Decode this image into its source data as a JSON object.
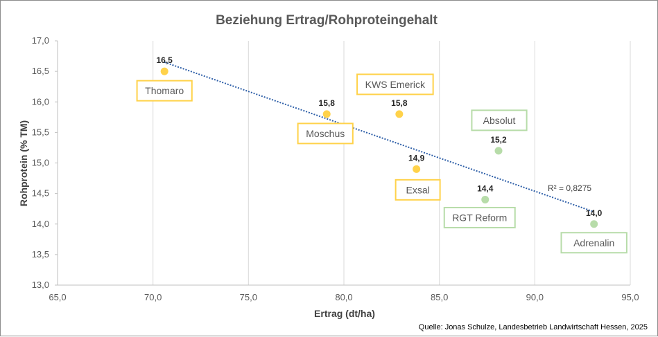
{
  "chart_data": {
    "type": "scatter",
    "title": "Beziehung Ertrag/Rohproteingehalt",
    "xlabel": "Ertrag (dt/ha)",
    "ylabel": "Rohprotein (% TM)",
    "xlim": [
      65,
      95
    ],
    "ylim": [
      13,
      17
    ],
    "x_ticks": [
      65,
      70,
      75,
      80,
      85,
      90,
      95
    ],
    "x_tick_labels": [
      "65,0",
      "70,0",
      "75,0",
      "80,0",
      "85,0",
      "90,0",
      "95,0"
    ],
    "y_ticks": [
      13,
      13.5,
      14,
      14.5,
      15,
      15.5,
      16,
      16.5,
      17
    ],
    "y_tick_labels": [
      "13,0",
      "13,5",
      "14,0",
      "14,5",
      "15,0",
      "15,5",
      "16,0",
      "16,5",
      "17,0"
    ],
    "grid": "vertical",
    "points": [
      {
        "name": "Thomaro",
        "x": 70.6,
        "y": 16.5,
        "label": "16,5",
        "group": "yellow"
      },
      {
        "name": "Moschus",
        "x": 79.1,
        "y": 15.8,
        "label": "15,8",
        "group": "yellow"
      },
      {
        "name": "KWS Emerick",
        "x": 82.9,
        "y": 15.8,
        "label": "15,8",
        "group": "yellow"
      },
      {
        "name": "Exsal",
        "x": 83.8,
        "y": 14.9,
        "label": "14,9",
        "group": "yellow"
      },
      {
        "name": "Absolut",
        "x": 88.1,
        "y": 15.2,
        "label": "15,2",
        "group": "green"
      },
      {
        "name": "RGT Reform",
        "x": 87.4,
        "y": 14.4,
        "label": "14,4",
        "group": "green"
      },
      {
        "name": "Adrenalin",
        "x": 93.1,
        "y": 14.0,
        "label": "14,0",
        "group": "green"
      }
    ],
    "trendline": {
      "type": "linear",
      "x_range": [
        70.6,
        93.1
      ],
      "y_range": [
        16.65,
        14.2
      ],
      "r_squared_label": "R² = 0,8275"
    },
    "colors": {
      "yellow": "#FFD24A",
      "yellow_box": "#FFD24A",
      "green": "#B7DCA9",
      "green_box": "#B7DCA9",
      "trend": "#2E5FA8",
      "grid": "#D9D9D9"
    },
    "source": "Quelle: Jonas Schulze, Landesbetrieb Landwirtschaft Hessen, 2025"
  }
}
